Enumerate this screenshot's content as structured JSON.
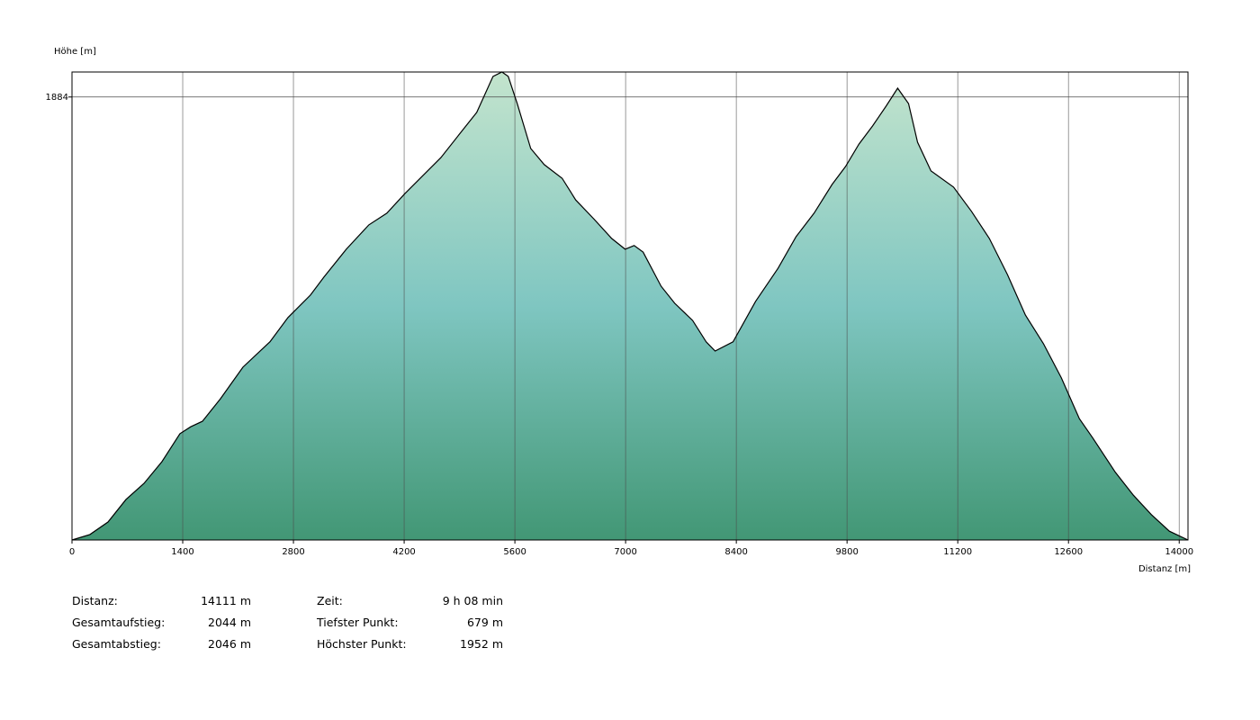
{
  "chart_data": {
    "type": "area",
    "y_label": "Höhe [m]",
    "x_label": "Distanz [m]",
    "x": [
      0,
      227,
      455,
      682,
      910,
      1137,
      1365,
      1501,
      1649,
      1876,
      2161,
      2502,
      2730,
      3014,
      3185,
      3469,
      3753,
      3981,
      4208,
      4436,
      4663,
      4891,
      5118,
      5323,
      5436,
      5516,
      5630,
      5800,
      5971,
      6198,
      6369,
      6596,
      6824,
      6994,
      7108,
      7222,
      7449,
      7620,
      7847,
      8018,
      8132,
      8359,
      8643,
      8928,
      9155,
      9383,
      9610,
      9781,
      9951,
      10122,
      10293,
      10440,
      10577,
      10691,
      10861,
      11146,
      11373,
      11600,
      11828,
      12055,
      12283,
      12510,
      12738,
      12908,
      13193,
      13420,
      13648,
      13875,
      14111
    ],
    "y": [
      679,
      694,
      728,
      789,
      833,
      892,
      968,
      987,
      1002,
      1063,
      1149,
      1218,
      1284,
      1345,
      1394,
      1470,
      1536,
      1568,
      1621,
      1670,
      1719,
      1781,
      1842,
      1940,
      1952,
      1940,
      1866,
      1744,
      1700,
      1663,
      1604,
      1553,
      1499,
      1470,
      1480,
      1462,
      1369,
      1323,
      1276,
      1218,
      1193,
      1218,
      1328,
      1418,
      1504,
      1568,
      1646,
      1695,
      1756,
      1805,
      1859,
      1908,
      1866,
      1761,
      1683,
      1639,
      1573,
      1499,
      1401,
      1291,
      1213,
      1120,
      1009,
      956,
      863,
      801,
      748,
      703,
      679
    ],
    "xlim": [
      0,
      14111
    ],
    "ylim": [
      679,
      1952
    ],
    "xticks": [
      0,
      1400,
      2800,
      4200,
      5600,
      7000,
      8400,
      9800,
      11200,
      12600,
      14000
    ],
    "yticks": [
      1884
    ],
    "grid": true,
    "line_color": "#000000",
    "gradient": [
      "#c3e4cd",
      "#7fc6c1",
      "#429775"
    ]
  },
  "stats": {
    "left": [
      {
        "label": "Distanz:",
        "value": "14111 m"
      },
      {
        "label": "Gesamtaufstieg:",
        "value": "2044 m"
      },
      {
        "label": "Gesamtabstieg:",
        "value": "2046 m"
      }
    ],
    "right": [
      {
        "label": "Zeit:",
        "value": "9 h 08 min"
      },
      {
        "label": "Tiefster Punkt:",
        "value": "679 m"
      },
      {
        "label": "Höchster Punkt:",
        "value": "1952 m"
      }
    ]
  }
}
